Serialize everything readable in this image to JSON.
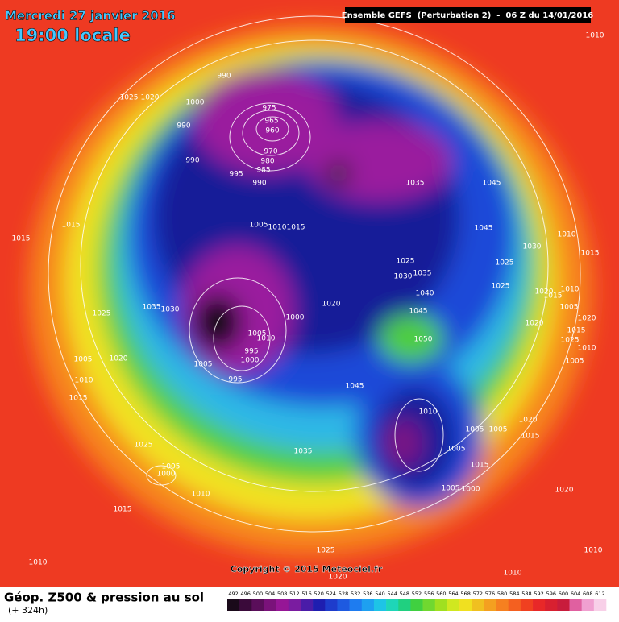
{
  "header": {
    "date": "Mercredi 27 janvier 2016",
    "time": "19:00 locale",
    "run": "Ensemble GEFS  (Perturbation 2)  -  06 Z du 14/01/2016"
  },
  "map": {
    "isobar_labels": [
      "1010",
      "1025",
      "1020",
      "990",
      "1000",
      "990",
      "990",
      "975",
      "965",
      "960",
      "970",
      "980",
      "985",
      "995",
      "990",
      "1035",
      "1045",
      "1015",
      "1015",
      "1005",
      "1010",
      "1015",
      "1045",
      "1030",
      "1010",
      "1015",
      "1025",
      "1035",
      "1030",
      "1025",
      "1040",
      "1025",
      "1020",
      "1010",
      "1015",
      "1005",
      "1020",
      "1025",
      "1035",
      "1030",
      "1020",
      "1045",
      "1000",
      "1020",
      "1015",
      "1010",
      "1005",
      "1025",
      "1010",
      "995",
      "1000",
      "1005",
      "1050",
      "1005",
      "1020",
      "1005",
      "995",
      "1010",
      "1045",
      "1015",
      "1010",
      "1020",
      "1005",
      "1005",
      "1015",
      "1025",
      "1005",
      "1035",
      "1005",
      "1000",
      "1015",
      "1010",
      "1005",
      "1000",
      "1020",
      "1015",
      "1010",
      "1025",
      "1010",
      "1010",
      "1020"
    ],
    "copyright": "Copyright © 2015 Meteociel.fr"
  },
  "footer": {
    "title": "Géop. Z500 & pression au sol",
    "subtitle": "(+ 324h)"
  },
  "colorbar": {
    "labels": [
      492,
      496,
      500,
      504,
      508,
      512,
      516,
      520,
      524,
      528,
      532,
      536,
      540,
      544,
      548,
      552,
      556,
      560,
      564,
      568,
      572,
      576,
      580,
      584,
      588,
      592,
      596,
      600,
      604,
      608,
      612
    ]
  }
}
